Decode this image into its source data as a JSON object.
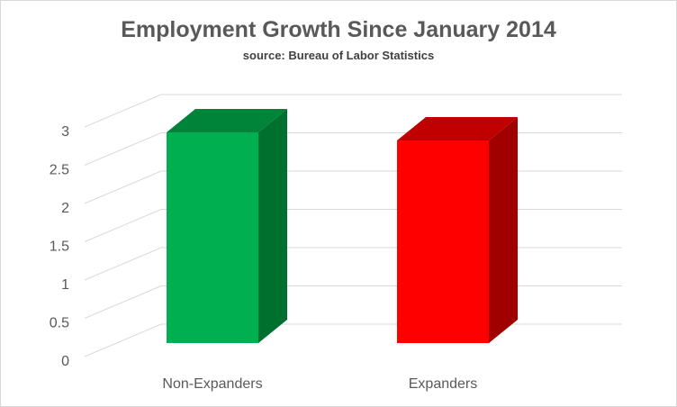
{
  "chart_data": {
    "type": "bar",
    "title": "Employment Growth Since January 2014",
    "subtitle": "source: Bureau of Labor Statistics",
    "categories": [
      "Non-Expanders",
      "Expanders"
    ],
    "values": [
      2.6,
      2.5
    ],
    "ylim": [
      0,
      3
    ],
    "yticks": [
      "0",
      "0.5",
      "1",
      "1.5",
      "2",
      "2.5",
      "3"
    ],
    "xlabel": "",
    "ylabel": "",
    "grid": true,
    "style": "3d-column",
    "colors": {
      "Non-Expanders": {
        "front": "#00b050",
        "side": "#00702f",
        "top": "#00843a"
      },
      "Expanders": {
        "front": "#ff0000",
        "side": "#a00000",
        "top": "#c00000"
      },
      "grid": "#d9d9d9",
      "text": "#595959"
    }
  }
}
